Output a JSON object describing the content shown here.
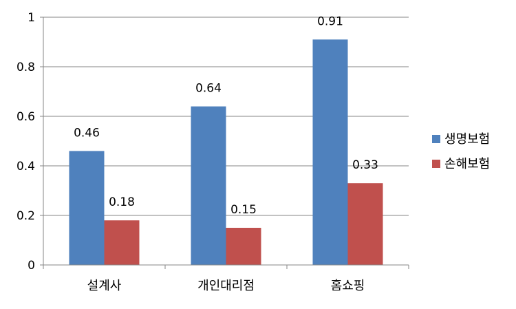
{
  "chart_data": {
    "type": "bar",
    "categories": [
      "설계사",
      "개인대리점",
      "홈쇼핑"
    ],
    "series": [
      {
        "name": "생명보험",
        "values": [
          0.46,
          0.64,
          0.91
        ],
        "color": "#4F81BD"
      },
      {
        "name": "손해보험",
        "values": [
          0.18,
          0.15,
          0.33
        ],
        "color": "#C0504D"
      }
    ],
    "value_labels": [
      [
        "0.46",
        "0.64",
        "0.91"
      ],
      [
        "0.18",
        "0.15",
        "0.33"
      ]
    ],
    "ylim": [
      0,
      1
    ],
    "yticks": [
      0,
      0.2,
      0.4,
      0.6,
      0.8,
      1
    ],
    "ytick_labels": [
      "0",
      "0.2",
      "0.4",
      "0.6",
      "0.8",
      "1"
    ],
    "grid": true,
    "legend_position": "right",
    "colors": {
      "gridline": "#868686",
      "axis": "#868686"
    }
  }
}
